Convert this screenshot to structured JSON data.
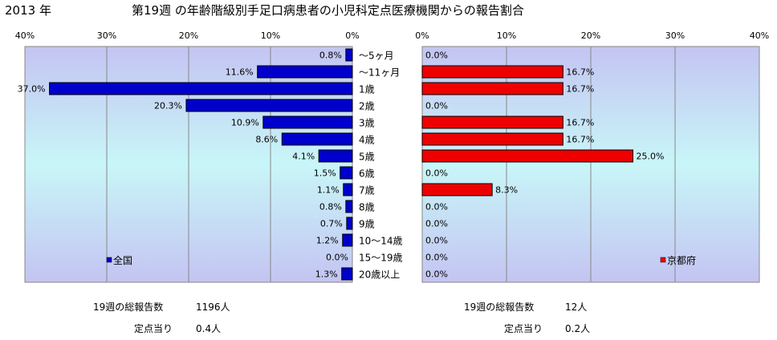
{
  "header": {
    "year": "2013 年",
    "title": "第19週 の年齢階級別手足口病患者の小児科定点医療機関からの報告割合"
  },
  "chart_data": {
    "type": "bar",
    "orientation": "horizontal",
    "categories": [
      "～5ヶ月",
      "～11ヶ月",
      "1歳",
      "2歳",
      "3歳",
      "4歳",
      "5歳",
      "6歳",
      "7歳",
      "8歳",
      "9歳",
      "10～14歳",
      "15～19歳",
      "20歳以上"
    ],
    "xlim": [
      0,
      40
    ],
    "xticks": [
      "40%",
      "30%",
      "20%",
      "10%",
      "0%"
    ],
    "xticks_right": [
      "0%",
      "10%",
      "20%",
      "30%",
      "40%"
    ],
    "grid": true,
    "series": [
      {
        "name": "全国",
        "color": "#0000cc",
        "values": [
          0.8,
          11.6,
          37.0,
          20.3,
          10.9,
          8.6,
          4.1,
          1.5,
          1.1,
          0.8,
          0.7,
          1.2,
          0.0,
          1.3
        ],
        "labels": [
          "0.8%",
          "11.6%",
          "37.0%",
          "20.3%",
          "10.9%",
          "8.6%",
          "4.1%",
          "1.5%",
          "1.1%",
          "0.8%",
          "0.7%",
          "1.2%",
          "0.0%",
          "1.3%"
        ],
        "legend_position": "bottom-left"
      },
      {
        "name": "京都府",
        "color": "#ee0000",
        "values": [
          0.0,
          16.7,
          16.7,
          0.0,
          16.7,
          16.7,
          25.0,
          0.0,
          8.3,
          0.0,
          0.0,
          0.0,
          0.0,
          0.0
        ],
        "labels": [
          "0.0%",
          "16.7%",
          "16.7%",
          "0.0%",
          "16.7%",
          "16.7%",
          "25.0%",
          "0.0%",
          "8.3%",
          "0.0%",
          "0.0%",
          "0.0%",
          "0.0%",
          "0.0%"
        ],
        "legend_position": "bottom-right"
      }
    ]
  },
  "footer": {
    "left": {
      "total_label": "19週の総報告数",
      "total_value": "1196人",
      "per_label": "定点当り",
      "per_value": "0.4人"
    },
    "right": {
      "total_label": "19週の総報告数",
      "total_value": "12人",
      "per_label": "定点当り",
      "per_value": "0.2人"
    }
  }
}
